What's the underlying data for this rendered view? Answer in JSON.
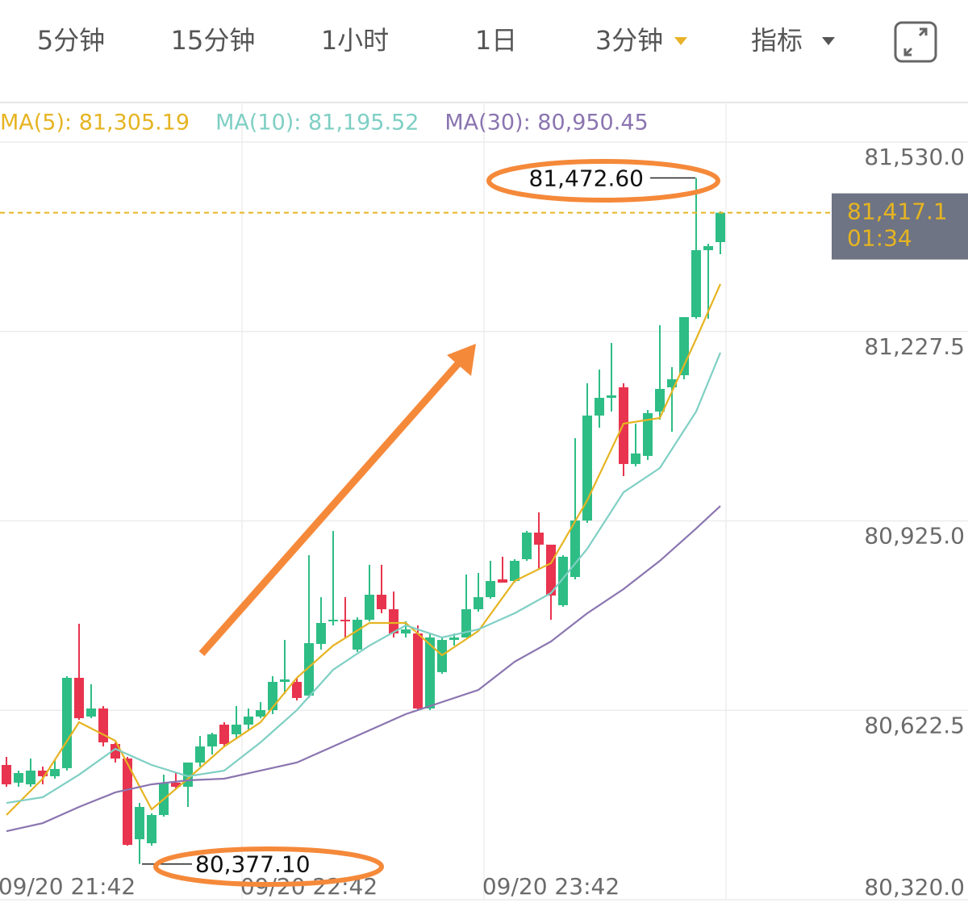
{
  "tabs": {
    "items": [
      "5分钟",
      "15分钟",
      "1小时",
      "1日",
      "3分钟",
      "指标"
    ],
    "active_color": "#e8b22a"
  },
  "chart_data": {
    "type": "candlestick",
    "categories": [
      null,
      null,
      null,
      null,
      null,
      "09/20 21:42",
      null,
      null,
      null,
      null,
      null,
      null,
      null,
      null,
      null,
      null,
      null,
      null,
      null,
      null,
      null,
      null,
      null,
      null,
      null,
      "09/20 22:42",
      null,
      null,
      null,
      null,
      null,
      null,
      null,
      null,
      null,
      null,
      null,
      null,
      null,
      null,
      null,
      null,
      null,
      null,
      null,
      "09/20 23:42",
      null,
      null,
      null,
      null,
      null,
      null,
      null,
      null,
      null,
      null,
      null,
      null,
      null,
      null
    ],
    "open": [
      80535.2,
      80506.9,
      80504.3,
      80526.2,
      80517.2,
      80530.1,
      80674.4,
      80612.5,
      80625.4,
      80568.7,
      80545.5,
      80416.6,
      80410.2,
      80455.3,
      80506.9,
      80500.4,
      80539.1,
      80564.8,
      80599.6,
      80584.2,
      80599.6,
      80612.5,
      80622.8,
      80667.9,
      80667.9,
      80646.0,
      80728.5,
      80764.6,
      80767.1,
      80719.5,
      80767.1,
      80807.1,
      80783.9,
      80745.2,
      80745.2,
      80625.4,
      80683.4,
      80734.9,
      80738.8,
      80783.9,
      80803.2,
      80831.6,
      80829.0,
      80863.8,
      80906.3,
      80887.0,
      80790.3,
      80835.4,
      80925.6,
      81093.2,
      81121.5,
      81138.3,
      81015.8,
      81028.7,
      81099.6,
      81138.3,
      81157.6,
      81250.4,
      81357.3,
      81370.2
    ],
    "high": [
      80548.1,
      80526.2,
      80545.5,
      80532.6,
      80542.9,
      80676.9,
      80760.7,
      80664.1,
      80629.3,
      80571.3,
      80548.1,
      80474.6,
      80457.9,
      80519.7,
      80522.3,
      80539.1,
      80581.6,
      80586.7,
      80603.5,
      80629.3,
      80625.4,
      80635.7,
      80676.9,
      80734.9,
      80674.4,
      80870.2,
      80803.2,
      80908.9,
      80803.2,
      80771.0,
      80854.8,
      80854.8,
      80812.2,
      80764.6,
      80758.1,
      80745.2,
      80738.8,
      80745.2,
      80839.3,
      80841.9,
      80861.2,
      80867.7,
      80863.8,
      80908.9,
      80938.5,
      80887.0,
      80870.2,
      81057.1,
      81144.7,
      81166.6,
      81209.1,
      81144.7,
      81080.3,
      81102.2,
      81237.5,
      81170.5,
      81250.4,
      81472.6,
      81367.6,
      81419.2
    ],
    "low": [
      80500.4,
      80500.4,
      80500.4,
      80504.3,
      80513.3,
      80526.2,
      80607.4,
      80609.9,
      80564.8,
      80539.1,
      80406.3,
      80377.1,
      80406.3,
      80452.7,
      80496.5,
      80468.2,
      80532.6,
      80552.0,
      80564.8,
      80577.7,
      80590.6,
      80609.9,
      80616.4,
      80648.6,
      80638.3,
      80642.2,
      80719.5,
      80758.1,
      80738.8,
      80715.6,
      80764.6,
      80777.5,
      80738.8,
      80738.8,
      80622.8,
      80622.8,
      80680.8,
      80725.9,
      80738.8,
      80780.0,
      80800.7,
      80826.4,
      80826.4,
      80861.2,
      80848.3,
      80767.1,
      80787.8,
      80831.6,
      80921.8,
      81073.8,
      81099.6,
      80996.5,
      81012.0,
      81022.3,
      81086.7,
      81067.4,
      81151.1,
      81247.8,
      81247.8,
      81350.9
    ],
    "close": [
      80504.3,
      80522.3,
      80526.2,
      80517.2,
      80528.8,
      80674.4,
      80609.9,
      80625.4,
      80571.3,
      80545.5,
      80407.6,
      80468.2,
      80455.3,
      80506.9,
      80500.4,
      80539.1,
      80564.8,
      80584.2,
      80568.7,
      80599.6,
      80612.5,
      80622.8,
      80667.9,
      80671.8,
      80642.2,
      80729.8,
      80762.0,
      80767.1,
      80764.6,
      80767.1,
      80807.1,
      80783.9,
      80745.2,
      80751.7,
      80625.4,
      80738.8,
      80734.9,
      80738.8,
      80783.9,
      80803.2,
      80829.0,
      80826.4,
      80861.2,
      80906.3,
      80887.0,
      80805.8,
      80867.7,
      80925.6,
      81093.2,
      81121.5,
      81125.4,
      81015.8,
      81032.6,
      81097.0,
      81135.7,
      81151.1,
      81250.4,
      81357.3,
      81363.8,
      81417.1
    ],
    "up_color": "#2ebd85",
    "down_color": "#e8344e",
    "series": [
      {
        "name": "MA(5): 81,305.19",
        "color": "#e6b422",
        "x": [
          0,
          3,
          6,
          9,
          12,
          15,
          18,
          21,
          24,
          27,
          30,
          33,
          36,
          39,
          42,
          45,
          48,
          51,
          54,
          57,
          59
        ],
        "values": [
          80455.3,
          80513.3,
          80603.5,
          80573.9,
          80464.3,
          80513.3,
          80564.8,
          80603.5,
          80674.4,
          80725.9,
          80762.0,
          80762.0,
          80710.4,
          80749.1,
          80829.0,
          80857.4,
          80957.9,
          81080.3,
          81089.3,
          81215.6,
          81303.2
        ]
      },
      {
        "name": "MA(10): 81,195.52",
        "color": "#7fcfc4",
        "x": [
          0,
          3,
          6,
          9,
          12,
          15,
          18,
          21,
          24,
          27,
          30,
          33,
          36,
          39,
          42,
          45,
          48,
          51,
          54,
          57,
          59
        ],
        "values": [
          80474.6,
          80483.7,
          80519.7,
          80561.0,
          80535.2,
          80517.2,
          80526.2,
          80571.3,
          80622.8,
          80687.3,
          80725.9,
          80758.1,
          80738.8,
          80751.7,
          80777.5,
          80809.7,
          80880.5,
          80970.7,
          81009.4,
          81099.6,
          81193.7
        ]
      },
      {
        "name": "MA(30): 80,950.45",
        "color": "#8a75b0",
        "x": [
          0,
          3,
          6,
          9,
          12,
          15,
          18,
          21,
          24,
          27,
          30,
          33,
          36,
          39,
          42,
          45,
          48,
          51,
          54,
          57,
          59
        ],
        "values": [
          80429.5,
          80442.4,
          80468.2,
          80491.4,
          80504.3,
          80510.7,
          80513.3,
          80526.2,
          80539.1,
          80564.8,
          80590.6,
          80616.4,
          80635.7,
          80655.0,
          80700.1,
          80732.4,
          80777.5,
          80816.1,
          80861.2,
          80912.8,
          80948.8
        ]
      }
    ],
    "ylim": [
      80320,
      81530
    ],
    "yticks": [
      {
        "value": 81530,
        "label": "81,530.0"
      },
      {
        "value": 81227.5,
        "label": "81,227.5"
      },
      {
        "value": 80925,
        "label": "80,925.0"
      },
      {
        "value": 80622.5,
        "label": "80,622.5"
      },
      {
        "value": 80320,
        "label": "80,320.0"
      }
    ],
    "grid": true,
    "last_price": {
      "value": 81417.1,
      "label": "81,417.1",
      "countdown": "01:34",
      "color": "#e6b422"
    },
    "annotations": [
      {
        "value": 81472.6,
        "label": "81,472.60"
      },
      {
        "value": 80377.1,
        "label": "80,377.10"
      }
    ]
  }
}
